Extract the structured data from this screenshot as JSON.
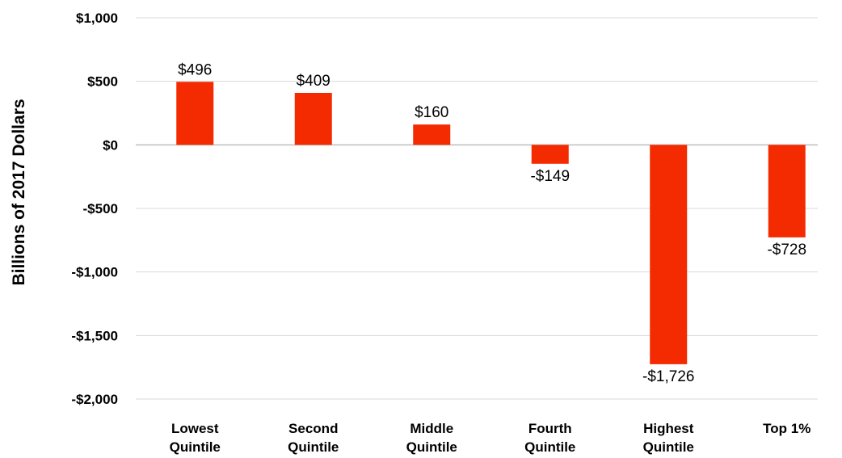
{
  "chart_data": {
    "type": "bar",
    "categories": [
      [
        "Lowest",
        "Quintile"
      ],
      [
        "Second",
        "Quintile"
      ],
      [
        "Middle",
        "Quintile"
      ],
      [
        "Fourth",
        "Quintile"
      ],
      [
        "Highest",
        "Quintile"
      ],
      [
        "Top 1%"
      ]
    ],
    "values": [
      496,
      409,
      160,
      -149,
      -1726,
      -728
    ],
    "value_labels": [
      "$496",
      "$409",
      "$160",
      "-$149",
      "-$1,726",
      "-$728"
    ],
    "ylabel": "Billions of 2017 Dollars",
    "ylim": [
      -2000,
      1000
    ],
    "yticks": [
      1000,
      500,
      0,
      -500,
      -1000,
      -1500,
      -2000
    ],
    "ytick_labels": [
      "$1,000",
      "$500",
      "$0",
      "-$500",
      "-$1,000",
      "-$1,500",
      "-$2,000"
    ],
    "grid": true,
    "bar_color": "#f42a00",
    "grid_color": "#d9d9d9",
    "zero_line_color": "#bfbfbf"
  }
}
